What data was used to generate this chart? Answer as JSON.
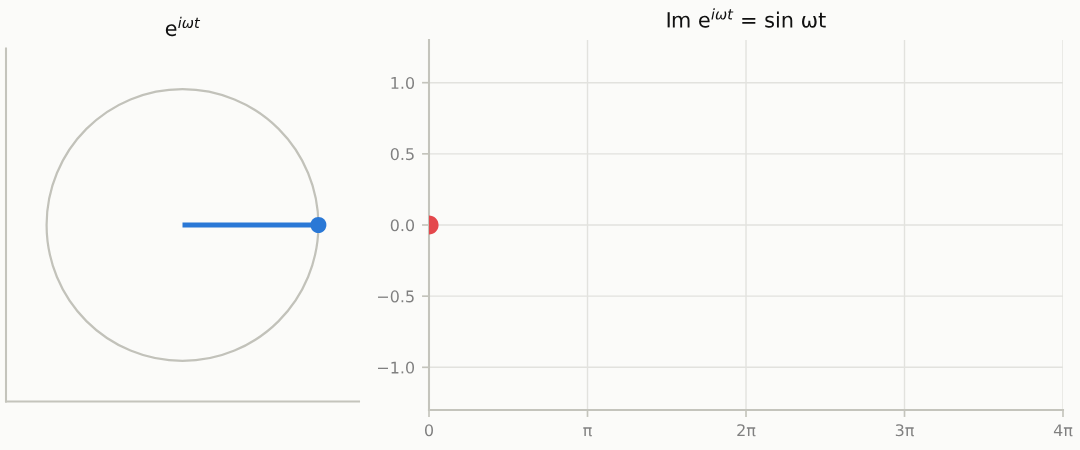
{
  "chart_data": [
    {
      "type": "other",
      "title": "e$^{iωt}$"
    },
    {
      "type": "scatter",
      "title": "Im e$^{iωt}$ = sin ωt",
      "x": [
        0
      ],
      "values": [
        0
      ],
      "color": "#e4484c",
      "marker": "circle",
      "xlim": [
        0,
        12.566
      ],
      "xticks": [
        0,
        {
          "value": 3.1416,
          "label": "π"
        },
        {
          "value": 6.2832,
          "label": "2π"
        },
        {
          "value": 9.4248,
          "label": "3π"
        },
        {
          "value": 12.566,
          "label": "4π"
        }
      ],
      "ylim": [
        -1.3,
        1.3
      ],
      "yticks": [
        {
          "value": -1.0,
          "label": "−1.0"
        },
        {
          "value": -0.5,
          "label": "−0.5"
        },
        {
          "value": 0.0,
          "label": "0.0"
        },
        {
          "value": 0.5,
          "label": "0.5"
        },
        {
          "value": 1.0,
          "label": "1.0"
        }
      ],
      "grid": true
    }
  ]
}
